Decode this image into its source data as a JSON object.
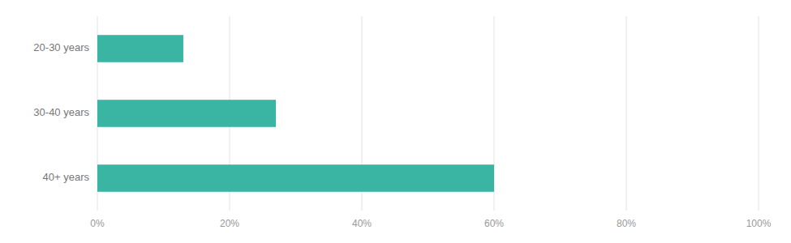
{
  "chart_data": {
    "type": "bar",
    "orientation": "horizontal",
    "categories": [
      "20-30 years",
      "30-40 years",
      "40+ years"
    ],
    "values": [
      13,
      27,
      60
    ],
    "color": "#3ab5a4",
    "xlim": [
      0,
      100
    ],
    "xticks": [
      {
        "value": 0,
        "label": "0%"
      },
      {
        "value": 20,
        "label": "20%"
      },
      {
        "value": 40,
        "label": "40%"
      },
      {
        "value": 60,
        "label": "60%"
      },
      {
        "value": 80,
        "label": "80%"
      },
      {
        "value": 100,
        "label": "100%"
      }
    ],
    "grid": true
  }
}
